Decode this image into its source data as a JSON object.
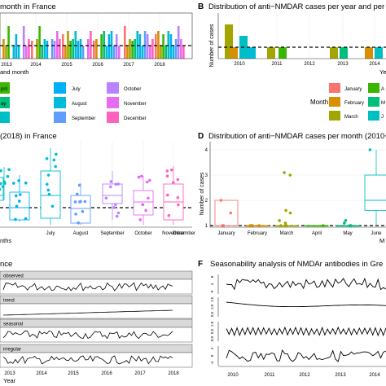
{
  "colors": {
    "January": "#F8766D",
    "February": "#D89000",
    "March": "#A3A500",
    "April": "#39B600",
    "May": "#00BF7D",
    "June": "#00BFC4",
    "July": "#00B0F6",
    "August": "#00BCD8",
    "September": "#619CFF",
    "October": "#B983FF",
    "November": "#E76BF3",
    "December": "#FF62BC",
    "grid": "#EBEBEB",
    "strip": "#D9D9D9"
  },
  "panels": {
    "A": {
      "title": "month in France"
    },
    "B": {
      "letter": "B",
      "title": "Distribution of anti−NMDAR cases per year and per"
    },
    "C": {
      "title": "(2018) in France"
    },
    "D": {
      "letter": "D",
      "title": "Distribution of anti−NMDAR cases per month (2010−"
    },
    "E": {
      "title": "nce"
    },
    "F": {
      "letter": "F",
      "title": "Seasonability analysis of NMDAr antibodies in Gre"
    }
  },
  "chart_data": [
    {
      "panel": "A",
      "type": "bar",
      "title": "month in France",
      "xlabel": "and month",
      "x_ticks": [
        "2013",
        "2014",
        "2015",
        "2016",
        "2017",
        "2018"
      ],
      "reference_line": "dashed",
      "legend_entries": [
        "pril",
        "ay",
        "July",
        "August",
        "September",
        "October",
        "November",
        "December"
      ]
    },
    {
      "panel": "B",
      "type": "bar",
      "title": "Distribution of anti−NMDAR cases per year and per",
      "ylabel": "Number of cases",
      "xlabel": "Year",
      "x_ticks": [
        "2010",
        "2011",
        "2012",
        "2013",
        "2014"
      ],
      "reference_line": "dashed",
      "ylim": [
        0,
        3
      ],
      "bars": [
        {
          "year": "2010",
          "month": "March",
          "value": 3
        },
        {
          "year": "2010",
          "month": "February",
          "value": 1
        },
        {
          "year": "2010",
          "month": "June",
          "value": 2
        },
        {
          "year": "2010",
          "month": "August",
          "value": 1
        },
        {
          "year": "2011",
          "month": "March",
          "value": 1
        },
        {
          "year": "2011",
          "month": "April",
          "value": 1
        },
        {
          "year": "2013",
          "month": "March",
          "value": 1
        },
        {
          "year": "2013",
          "month": "May",
          "value": 1
        },
        {
          "year": "2014",
          "month": "February",
          "value": 1
        },
        {
          "year": "2014",
          "month": "June",
          "value": 1
        }
      ],
      "legend_title": "Month",
      "legend_entries": [
        "January",
        "February",
        "March",
        "A",
        "M",
        "J"
      ]
    },
    {
      "panel": "C",
      "type": "box",
      "title": "(2018) in France",
      "xlabel": "nths",
      "categories": [
        "July",
        "August",
        "September",
        "October",
        "November",
        "December"
      ],
      "reference_line": "dashed"
    },
    {
      "panel": "D",
      "type": "box",
      "title": "Distribution of anti−NMDAR cases per month (2010−",
      "ylabel": "Number of cases",
      "xlabel": "M",
      "categories": [
        "January",
        "February",
        "March",
        "April",
        "May",
        "June"
      ],
      "y_ticks": [
        "1",
        "2",
        "3",
        "4"
      ],
      "ylim": [
        0.8,
        4.1
      ],
      "reference_line": 1,
      "boxes": [
        {
          "month": "January",
          "q1": 1,
          "median": 1,
          "q3": 2,
          "min": 1,
          "max": 2,
          "points": [
            1,
            1,
            1.5,
            2
          ]
        },
        {
          "month": "February",
          "q1": 1,
          "median": 1,
          "q3": 1,
          "min": 1,
          "max": 1,
          "points": [
            1,
            1,
            1,
            1
          ]
        },
        {
          "month": "March",
          "q1": 1,
          "median": 1,
          "q3": 1,
          "min": 1,
          "max": 1,
          "points": [
            1,
            1,
            1,
            1.1,
            1.2,
            1.5,
            1.6,
            3.0,
            3.1
          ]
        },
        {
          "month": "April",
          "q1": 1,
          "median": 1,
          "q3": 1,
          "min": 1,
          "max": 1,
          "points": [
            1
          ]
        },
        {
          "month": "May",
          "q1": 1,
          "median": 1,
          "q3": 1,
          "min": 1,
          "max": 1,
          "points": [
            1,
            1,
            1.1,
            1.2
          ]
        },
        {
          "month": "June",
          "q1": 1.6,
          "median": 2,
          "q3": 3,
          "min": 1,
          "max": 4,
          "points": [
            4
          ]
        }
      ]
    },
    {
      "panel": "E",
      "type": "line",
      "title": "nce",
      "facets": [
        "observed",
        "trend",
        "seasonal",
        "irregular"
      ],
      "x_ticks": [
        "2013",
        "2014",
        "2015",
        "2016",
        "2017",
        "2018"
      ],
      "xlabel": "Year"
    },
    {
      "panel": "F",
      "type": "line",
      "title": "Seasonability analysis of NMDAr antibodies in Gre",
      "x_ticks": [
        "2010",
        "2011",
        "2012",
        "2013",
        "2014"
      ],
      "facet_ticks": [
        [
          "8",
          "4",
          "0"
        ],
        [
          "1.5",
          "1.0",
          "0.5"
        ],
        [
          "1.0",
          "0.5",
          "0.0"
        ],
        [
          "4",
          "0",
          "-4"
        ]
      ]
    }
  ]
}
